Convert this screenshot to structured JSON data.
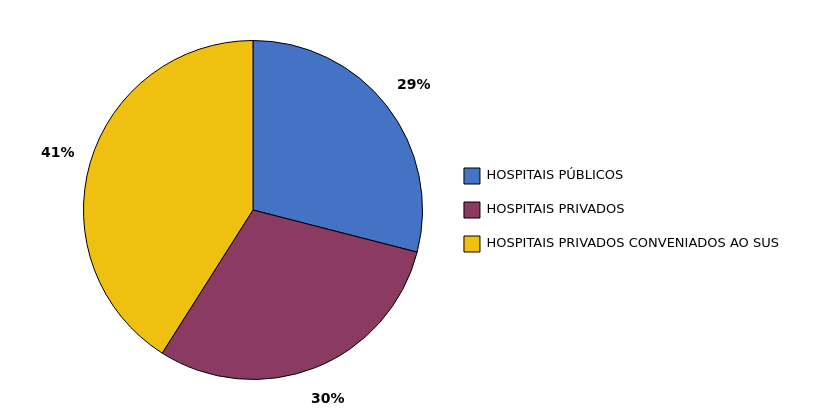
{
  "chart_data": {
    "type": "pie",
    "categories": [
      "HOSPITAIS PÚBLICOS",
      "HOSPITAIS PRIVADOS",
      "HOSPITAIS PRIVADOS CONVENIADOS AO SUS"
    ],
    "values": [
      29,
      30,
      41
    ],
    "value_labels": [
      "29%",
      "30%",
      "41%"
    ],
    "colors": [
      "#4472C4",
      "#8B3A62",
      "#F0C010"
    ],
    "data_labels": true,
    "legend": "right"
  }
}
